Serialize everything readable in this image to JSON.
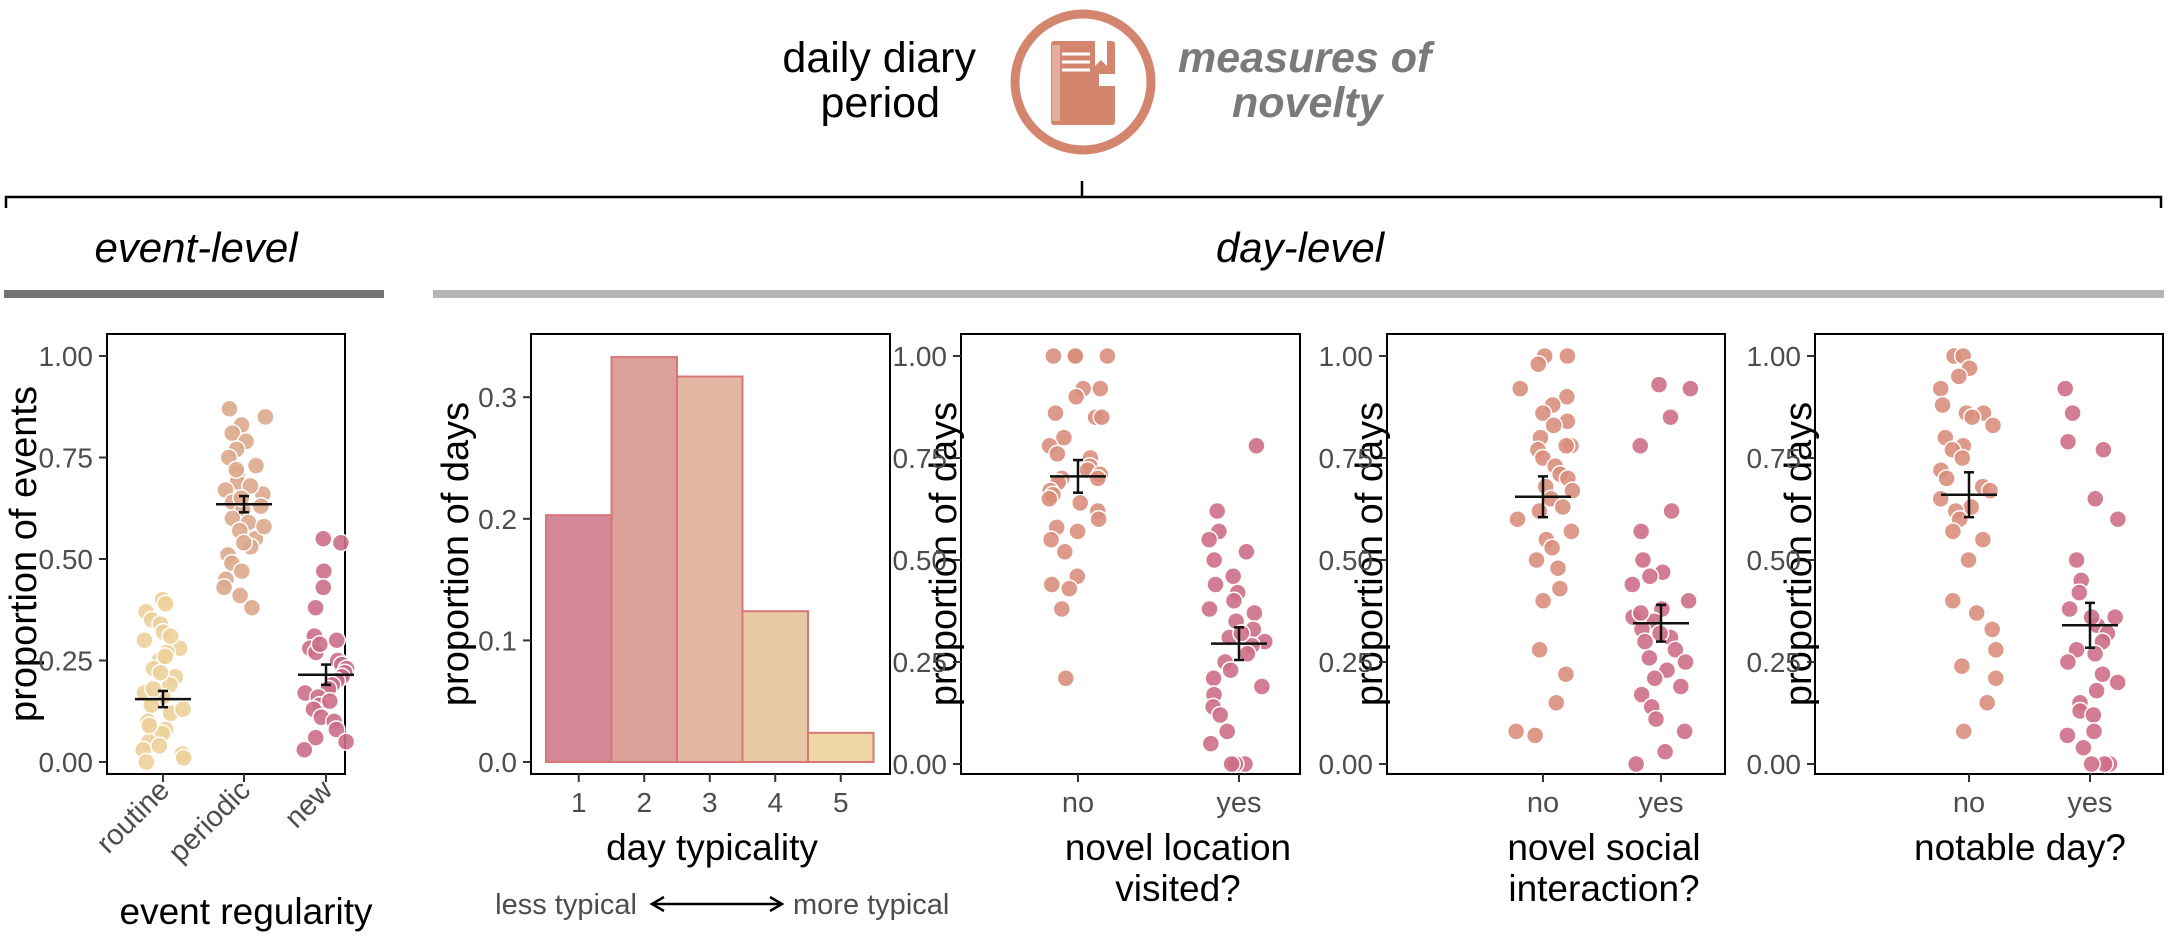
{
  "header": {
    "title_line1": "daily diary",
    "title_line2": "period",
    "subtitle_line1": "measures of",
    "subtitle_line2": "novelty",
    "icon": "diary-book-icon",
    "icon_color": "#d4856e"
  },
  "sections": {
    "event_level": "event-level",
    "day_level": "day-level"
  },
  "colors": {
    "routine": "#ecd09a",
    "periodic": "#dca98c",
    "new": "#cb6e89",
    "no": "#d98e7c",
    "yes": "#cd6f87"
  },
  "chart_data": [
    {
      "type": "scatter",
      "ylabel": "proportion of events",
      "xlabel": "event regularity",
      "categories": [
        "routine",
        "periodic",
        "new"
      ],
      "ylim": [
        0,
        1
      ],
      "yticks": [
        "0.00",
        "0.25",
        "0.50",
        "0.75",
        "1.00"
      ],
      "means": [
        0.155,
        0.635,
        0.215
      ],
      "errors": [
        0.02,
        0.02,
        0.025
      ],
      "points": [
        [
          0.4,
          0.39,
          0.37,
          0.35,
          0.34,
          0.32,
          0.3,
          0.28,
          0.27,
          0.25,
          0.23,
          0.21,
          0.19,
          0.17,
          0.16,
          0.14,
          0.12,
          0.1,
          0.08,
          0.07,
          0.05,
          0.03,
          0.02,
          0.01,
          0.0,
          0.22,
          0.13,
          0.09,
          0.04,
          0.26,
          0.31,
          0.18
        ],
        [
          0.87,
          0.85,
          0.83,
          0.81,
          0.79,
          0.77,
          0.75,
          0.73,
          0.71,
          0.69,
          0.67,
          0.66,
          0.64,
          0.63,
          0.62,
          0.6,
          0.59,
          0.57,
          0.55,
          0.53,
          0.51,
          0.49,
          0.47,
          0.45,
          0.43,
          0.41,
          0.38,
          0.68,
          0.58,
          0.72,
          0.65,
          0.54
        ],
        [
          0.55,
          0.54,
          0.47,
          0.43,
          0.38,
          0.31,
          0.3,
          0.28,
          0.27,
          0.25,
          0.24,
          0.23,
          0.22,
          0.21,
          0.2,
          0.19,
          0.18,
          0.17,
          0.16,
          0.14,
          0.13,
          0.11,
          0.1,
          0.08,
          0.06,
          0.05,
          0.03,
          0.29,
          0.15
        ]
      ]
    },
    {
      "type": "bar",
      "ylabel": "proportion of days",
      "xlabel": "day typicality",
      "categories": [
        "1",
        "2",
        "3",
        "4",
        "5"
      ],
      "values": [
        0.203,
        0.333,
        0.317,
        0.124,
        0.024
      ],
      "ylim": [
        0,
        0.35
      ],
      "yticks": [
        "0.0",
        "0.1",
        "0.2",
        "0.3"
      ],
      "colors": [
        "#d4899b",
        "#dba09a",
        "#e2b6a0",
        "#e8c9a5",
        "#eed6a6"
      ],
      "note_left": "less typical",
      "note_right": "more typical"
    },
    {
      "type": "scatter",
      "ylabel": "proportion of days",
      "xlabel_line1": "novel location",
      "xlabel_line2": "visited?",
      "categories": [
        "no",
        "yes"
      ],
      "ylim": [
        0,
        1
      ],
      "yticks": [
        "0.00",
        "0.25",
        "0.50",
        "0.75",
        "1.00"
      ],
      "means": [
        0.705,
        0.295
      ],
      "errors": [
        0.04,
        0.04
      ],
      "points": [
        [
          1.0,
          1.0,
          1.0,
          1.0,
          0.92,
          0.92,
          0.9,
          0.86,
          0.85,
          0.85,
          0.8,
          0.78,
          0.76,
          0.75,
          0.73,
          0.72,
          0.71,
          0.7,
          0.7,
          0.69,
          0.67,
          0.66,
          0.65,
          0.64,
          0.62,
          0.6,
          0.58,
          0.57,
          0.55,
          0.52,
          0.46,
          0.44,
          0.43,
          0.38,
          0.21
        ],
        [
          0.78,
          0.62,
          0.57,
          0.55,
          0.52,
          0.5,
          0.46,
          0.44,
          0.42,
          0.4,
          0.38,
          0.37,
          0.35,
          0.33,
          0.31,
          0.3,
          0.29,
          0.27,
          0.25,
          0.23,
          0.21,
          0.19,
          0.17,
          0.14,
          0.12,
          0.08,
          0.05,
          0.0,
          0.0,
          0.0,
          0.32
        ]
      ]
    },
    {
      "type": "scatter",
      "ylabel": "proportion of days",
      "xlabel_line1": "novel social",
      "xlabel_line2": "interaction?",
      "categories": [
        "no",
        "yes"
      ],
      "ylim": [
        0,
        1
      ],
      "yticks": [
        "0.00",
        "0.25",
        "0.50",
        "0.75",
        "1.00"
      ],
      "means": [
        0.655,
        0.345
      ],
      "errors": [
        0.05,
        0.045
      ],
      "points": [
        [
          1.0,
          1.0,
          0.98,
          0.92,
          0.9,
          0.88,
          0.86,
          0.84,
          0.83,
          0.8,
          0.78,
          0.78,
          0.77,
          0.75,
          0.73,
          0.71,
          0.7,
          0.68,
          0.67,
          0.65,
          0.63,
          0.62,
          0.6,
          0.57,
          0.55,
          0.53,
          0.5,
          0.48,
          0.43,
          0.4,
          0.28,
          0.22,
          0.15,
          0.08,
          0.07
        ],
        [
          0.93,
          0.92,
          0.85,
          0.78,
          0.62,
          0.57,
          0.5,
          0.47,
          0.46,
          0.44,
          0.4,
          0.38,
          0.36,
          0.35,
          0.33,
          0.31,
          0.3,
          0.28,
          0.26,
          0.25,
          0.23,
          0.21,
          0.19,
          0.17,
          0.14,
          0.11,
          0.08,
          0.03,
          0.0,
          0.37,
          0.32
        ]
      ]
    },
    {
      "type": "scatter",
      "ylabel": "proportion of days",
      "xlabel": "notable day?",
      "categories": [
        "no",
        "yes"
      ],
      "ylim": [
        0,
        1
      ],
      "yticks": [
        "0.00",
        "0.25",
        "0.50",
        "0.75",
        "1.00"
      ],
      "means": [
        0.66,
        0.34
      ],
      "errors": [
        0.055,
        0.055
      ],
      "points": [
        [
          1.0,
          1.0,
          0.97,
          0.95,
          0.92,
          0.88,
          0.86,
          0.86,
          0.85,
          0.83,
          0.8,
          0.78,
          0.77,
          0.75,
          0.72,
          0.7,
          0.68,
          0.67,
          0.65,
          0.63,
          0.62,
          0.6,
          0.57,
          0.55,
          0.5,
          0.4,
          0.37,
          0.33,
          0.28,
          0.24,
          0.21,
          0.15,
          0.08
        ],
        [
          0.92,
          0.86,
          0.79,
          0.77,
          0.65,
          0.6,
          0.5,
          0.45,
          0.42,
          0.38,
          0.36,
          0.34,
          0.32,
          0.3,
          0.28,
          0.27,
          0.25,
          0.22,
          0.2,
          0.18,
          0.15,
          0.13,
          0.12,
          0.08,
          0.07,
          0.04,
          0.0,
          0.0,
          0.0,
          0.36
        ]
      ]
    }
  ]
}
